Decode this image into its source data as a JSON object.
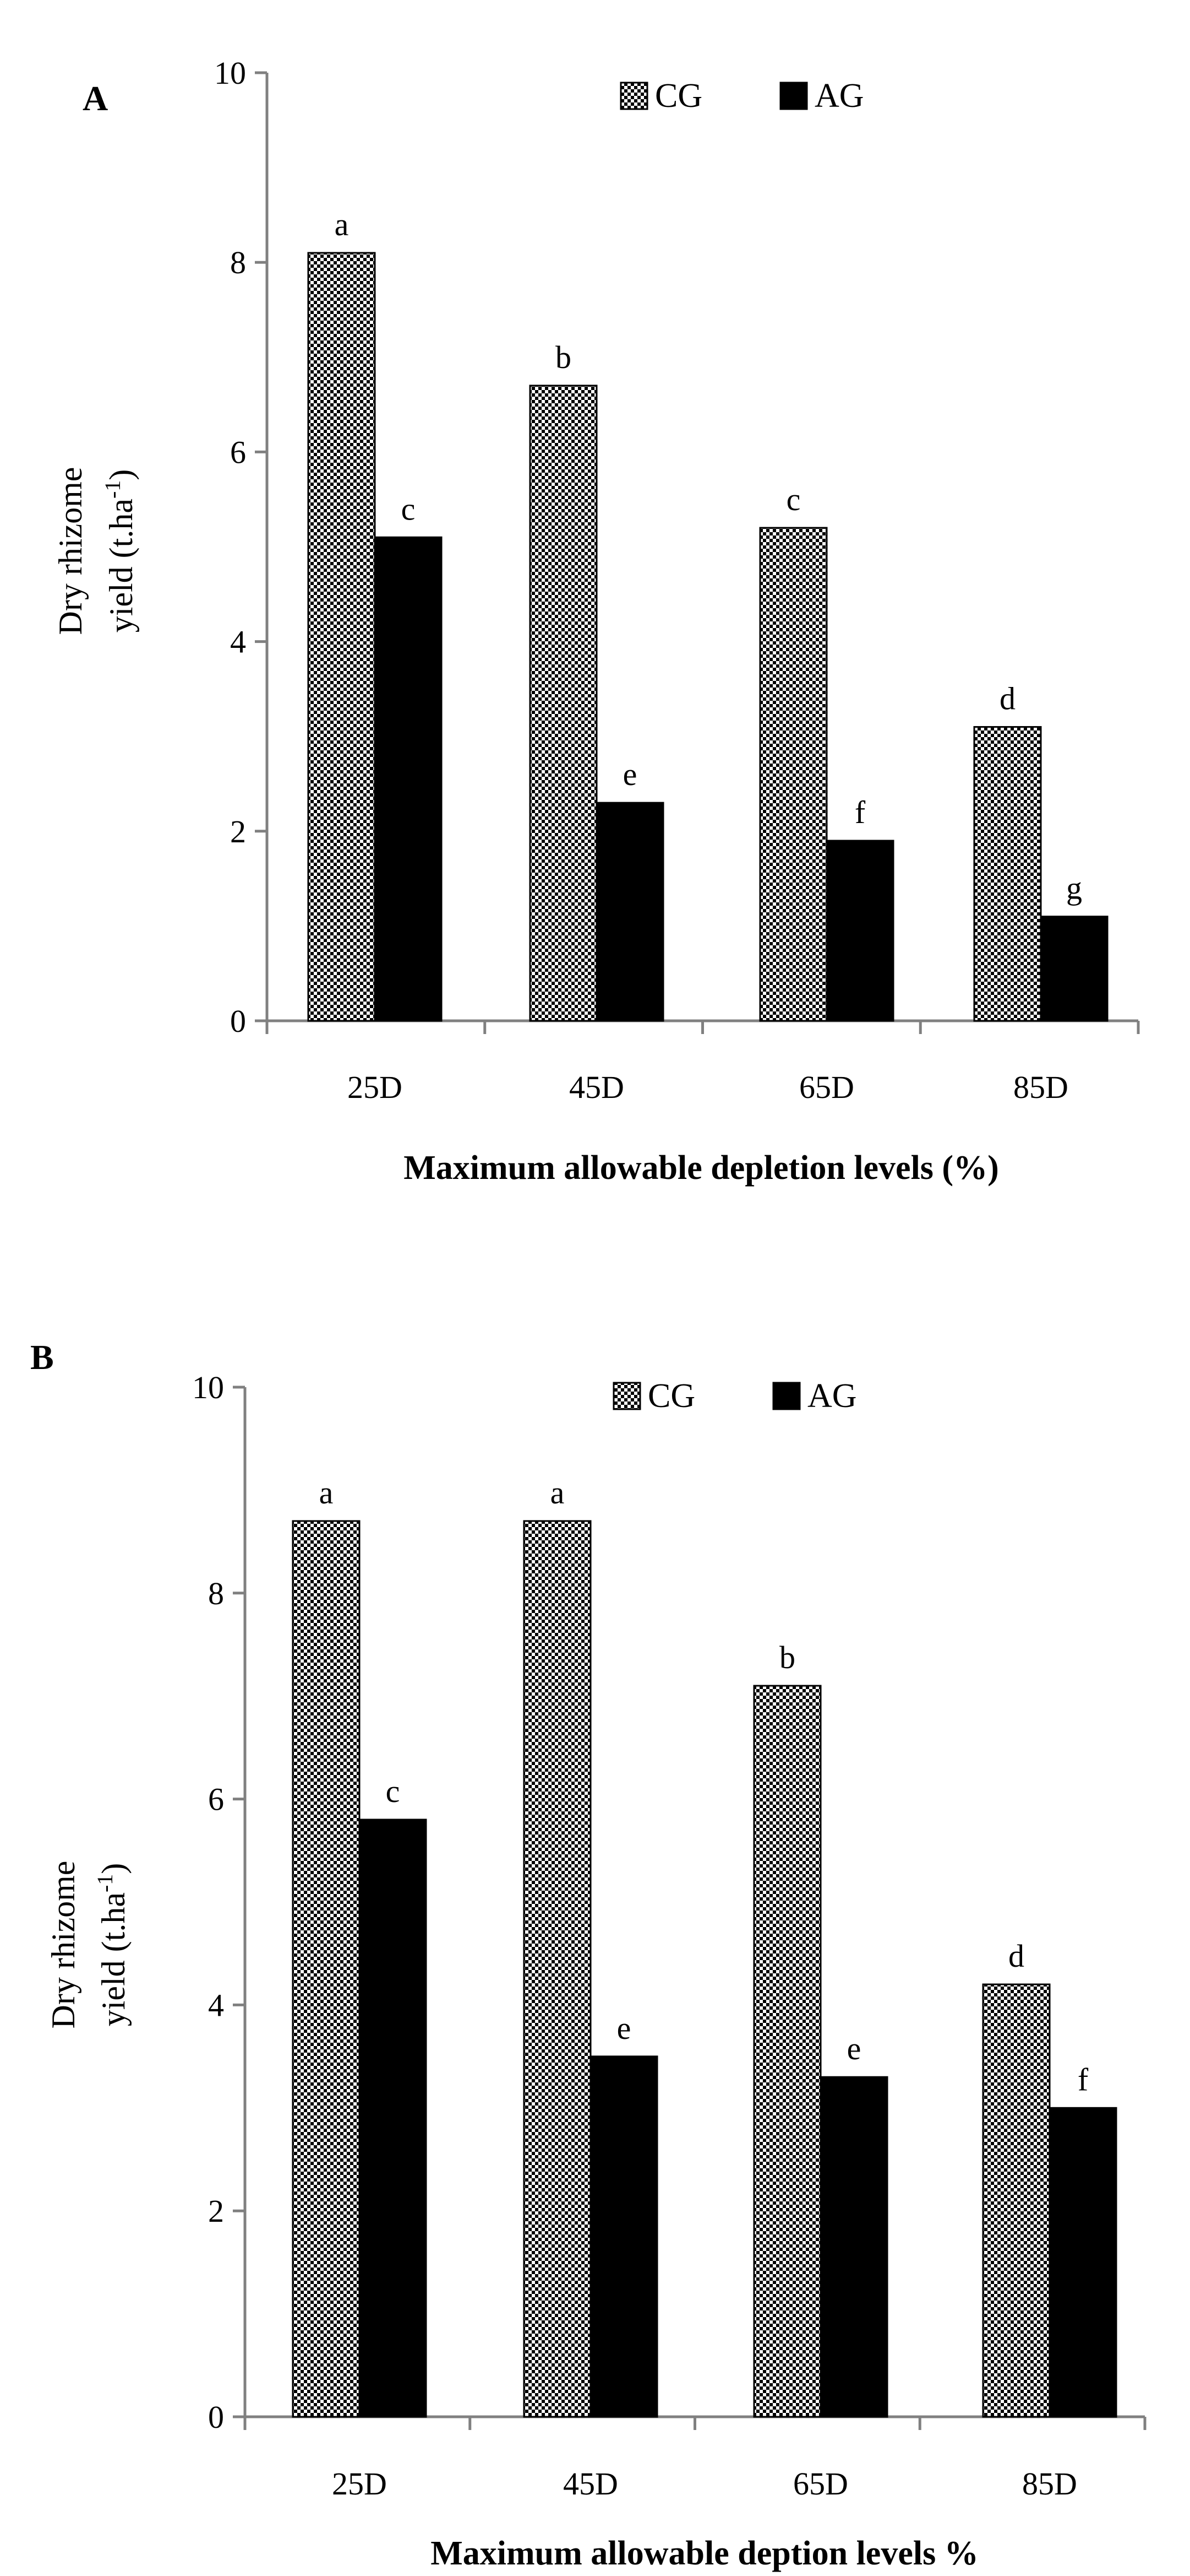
{
  "colors": {
    "cg_fill": "#ffffff",
    "cg_check": "#000000",
    "ag_fill": "#000000",
    "axis": "#808080"
  },
  "chart_data": [
    {
      "panel_label": "A",
      "type": "bar",
      "title": "",
      "xlabel": "Maximum allowable depletion levels  (%)",
      "ylabel_line1": "Dry rhizome",
      "ylabel_line2_prefix": "yield (t.ha",
      "ylabel_superscript": "-1",
      "ylabel_line2_suffix": ")",
      "ylim": [
        0,
        10
      ],
      "yticks": [
        "0",
        "2",
        "4",
        "6",
        "8",
        "10"
      ],
      "legend_position": "top-right",
      "categories": [
        "25D",
        "45D",
        "65D",
        "85D"
      ],
      "series": [
        {
          "name": "CG",
          "values": [
            8.1,
            6.7,
            5.2,
            3.1
          ],
          "letters": [
            "a",
            "b",
            "c",
            "d"
          ]
        },
        {
          "name": "AG",
          "values": [
            5.1,
            2.3,
            1.9,
            1.1
          ],
          "letters": [
            "c",
            "e",
            "f",
            "g"
          ]
        }
      ]
    },
    {
      "panel_label": "B",
      "type": "bar",
      "title": "",
      "xlabel": "Maximum allowable deption levels %",
      "ylabel_line1": "Dry rhizome",
      "ylabel_line2_prefix": "yield (t.ha",
      "ylabel_superscript": "-1",
      "ylabel_line2_suffix": ")",
      "ylim": [
        0,
        10
      ],
      "yticks": [
        "0",
        "2",
        "4",
        "6",
        "8",
        "10"
      ],
      "legend_position": "top-right",
      "categories": [
        "25D",
        "45D",
        "65D",
        "85D"
      ],
      "series": [
        {
          "name": "CG",
          "values": [
            8.7,
            8.7,
            7.1,
            4.2
          ],
          "letters": [
            "a",
            "a",
            "b",
            "d"
          ]
        },
        {
          "name": "AG",
          "values": [
            5.8,
            3.5,
            3.3,
            3.0
          ],
          "letters": [
            "c",
            "e",
            "e",
            "f"
          ]
        }
      ]
    }
  ]
}
